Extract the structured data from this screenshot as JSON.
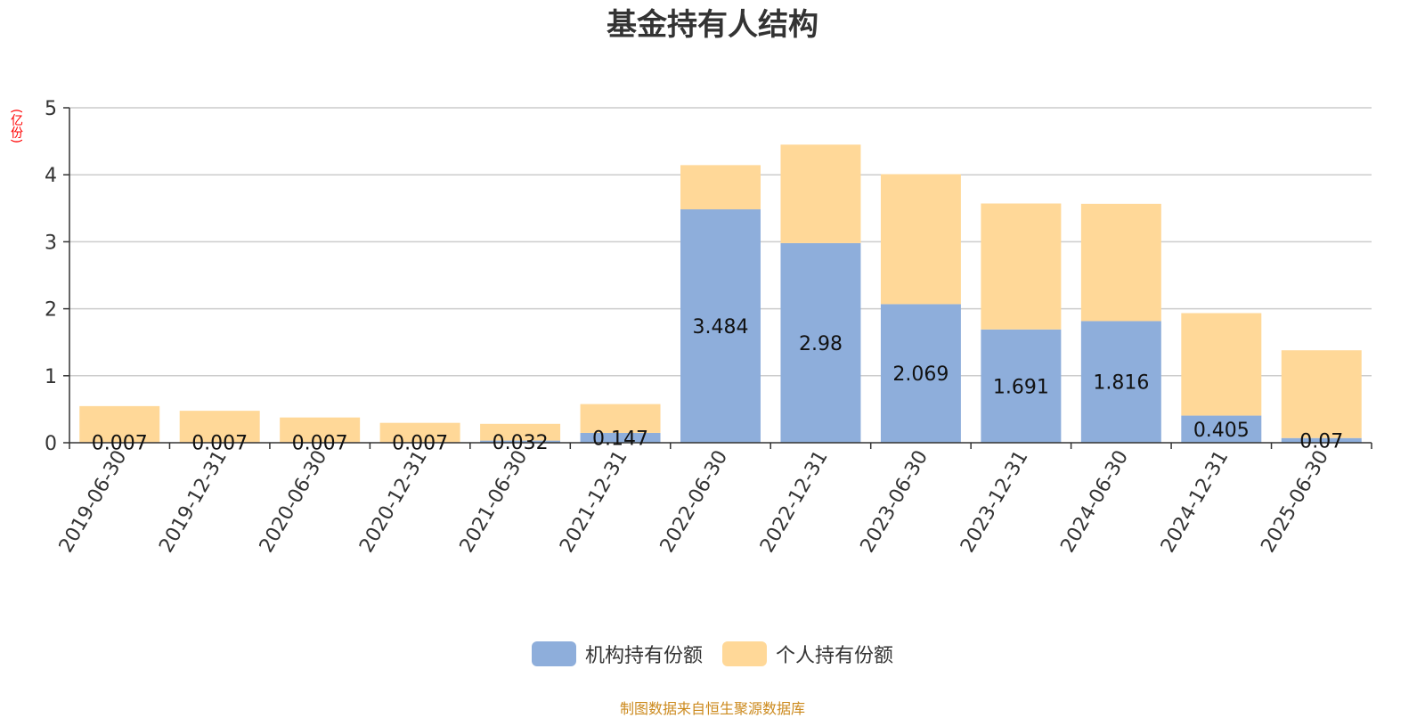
{
  "chart_data": {
    "type": "bar",
    "stacked": true,
    "title": "基金持有人结构",
    "ylabel": "(亿份)",
    "ylim": [
      0,
      5
    ],
    "yticks": [
      0,
      1,
      2,
      3,
      4,
      5
    ],
    "grid": true,
    "legend_position": "bottom",
    "categories": [
      "2019-06-30",
      "2019-12-31",
      "2020-06-30",
      "2020-12-31",
      "2021-06-30",
      "2021-12-31",
      "2022-06-30",
      "2022-12-31",
      "2023-06-30",
      "2023-12-31",
      "2024-06-30",
      "2024-12-31",
      "2025-06-30"
    ],
    "series": [
      {
        "name": "机构持有份额",
        "color": "#8eaedb",
        "values": [
          0.007,
          0.007,
          0.007,
          0.007,
          0.032,
          0.147,
          3.484,
          2.98,
          2.069,
          1.691,
          1.816,
          0.405,
          0.07
        ],
        "labels": [
          "0.007",
          "0.007",
          "0.007",
          "0.007",
          "0.032",
          "0.147",
          "3.484",
          "2.98",
          "2.069",
          "1.691",
          "1.816",
          "0.405",
          "0.07"
        ]
      },
      {
        "name": "个人持有份额",
        "color": "#ffd898",
        "values": [
          0.54,
          0.47,
          0.37,
          0.29,
          0.25,
          0.43,
          0.66,
          1.47,
          1.94,
          1.88,
          1.75,
          1.53,
          1.31
        ]
      }
    ]
  },
  "footer": {
    "source": "制图数据来自恒生聚源数据库"
  }
}
